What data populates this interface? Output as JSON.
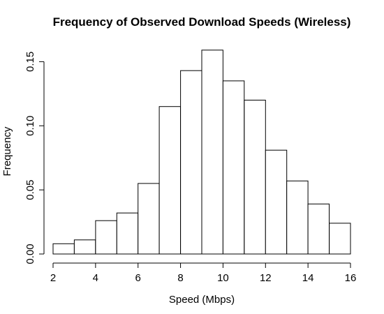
{
  "chart_data": {
    "type": "bar",
    "title": "Frequency of Observed Download Speeds (Wireless)",
    "xlabel": "Speed (Mbps)",
    "ylabel": "Frequency",
    "bins": [
      {
        "start": 2,
        "end": 3,
        "value": 0.008
      },
      {
        "start": 3,
        "end": 4,
        "value": 0.011
      },
      {
        "start": 4,
        "end": 5,
        "value": 0.026
      },
      {
        "start": 5,
        "end": 6,
        "value": 0.032
      },
      {
        "start": 6,
        "end": 7,
        "value": 0.055
      },
      {
        "start": 7,
        "end": 8,
        "value": 0.115
      },
      {
        "start": 8,
        "end": 9,
        "value": 0.143
      },
      {
        "start": 9,
        "end": 10,
        "value": 0.159
      },
      {
        "start": 10,
        "end": 11,
        "value": 0.135
      },
      {
        "start": 11,
        "end": 12,
        "value": 0.12
      },
      {
        "start": 12,
        "end": 13,
        "value": 0.081
      },
      {
        "start": 13,
        "end": 14,
        "value": 0.057
      },
      {
        "start": 14,
        "end": 15,
        "value": 0.039
      },
      {
        "start": 15,
        "end": 16,
        "value": 0.024
      }
    ],
    "xlim": [
      2,
      16
    ],
    "ylim": [
      0,
      0.16
    ],
    "xticks": [
      {
        "value": 2,
        "label": "2"
      },
      {
        "value": 4,
        "label": "4"
      },
      {
        "value": 6,
        "label": "6"
      },
      {
        "value": 8,
        "label": "8"
      },
      {
        "value": 10,
        "label": "10"
      },
      {
        "value": 12,
        "label": "12"
      },
      {
        "value": 14,
        "label": "14"
      },
      {
        "value": 16,
        "label": "16"
      }
    ],
    "yticks": [
      {
        "value": 0,
        "label": "0.00"
      },
      {
        "value": 0.05,
        "label": "0.05"
      },
      {
        "value": 0.1,
        "label": "0.10"
      },
      {
        "value": 0.15,
        "label": "0.15"
      }
    ],
    "grid": false,
    "bar_fill": "#ffffff",
    "bar_stroke": "#000000"
  }
}
